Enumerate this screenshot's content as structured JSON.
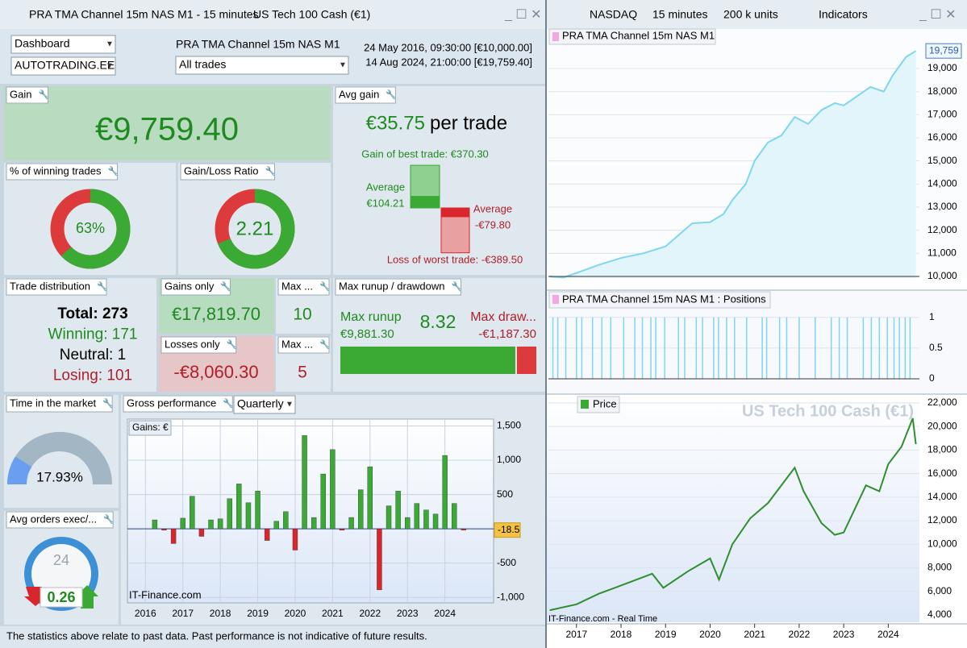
{
  "window": {
    "title": "PRA TMA Channel 15m NAS M1 - 15 minutes",
    "instrument": "US Tech 100 Cash (€1)"
  },
  "toolbar": {
    "market": "NASDAQ",
    "timeframe": "15 minutes",
    "units": "200 k units",
    "indicators": "Indicators"
  },
  "header": {
    "view": "Dashboard",
    "account": "AUTOTRADING.EE",
    "strategy": "PRA TMA Channel 15m NAS M1",
    "filter": "All trades",
    "start": "24 May 2016, 09:30:00 [€10,000.00]",
    "end": "14 Aug 2024, 21:00:00 [€19,759.40]"
  },
  "gain": {
    "label": "Gain",
    "value": "€9,759.40"
  },
  "avg_gain": {
    "label": "Avg gain",
    "value": "€35.75",
    "suffix": "per trade",
    "best": {
      "value": 370.3,
      "label": "Gain of best trade: €370.30"
    },
    "avg_win_label": "Average",
    "avg_win": {
      "value": 104.21,
      "label": "€104.21"
    },
    "avg_loss_label": "Average",
    "avg_loss": {
      "value": -79.8,
      "label": "-€79.80"
    },
    "worst": {
      "value": -389.5,
      "label": "Loss of worst trade: -€389.50"
    }
  },
  "winning": {
    "label": "% of winning trades",
    "value": 63,
    "value_label": "63%"
  },
  "ratio": {
    "label": "Gain/Loss Ratio",
    "value": 2.21
  },
  "distribution": {
    "label": "Trade distribution",
    "rows": [
      {
        "label": "Total:",
        "value": 273
      },
      {
        "label": "Winning:",
        "value": 171
      },
      {
        "label": "Neutral:",
        "value": 1
      },
      {
        "label": "Losing:",
        "value": 101
      }
    ]
  },
  "gains_only": {
    "label": "Gains only",
    "value": "€17,819.70",
    "max_label": "Max ...",
    "max": 10
  },
  "losses_only": {
    "label": "Losses only",
    "value": "-€8,060.30",
    "max_label": "Max ...",
    "max": 5
  },
  "runup": {
    "label": "Max runup / drawdown",
    "runup_label": "Max runup",
    "runup": {
      "value": 9881.3,
      "label": "€9,881.30"
    },
    "ratio": 8.32,
    "drawdown_label": "Max draw...",
    "drawdown": {
      "value": -1187.3,
      "label": "-€1,187.30"
    }
  },
  "time_in_market": {
    "label": "Time in the market",
    "value": 17.93,
    "value_label": "17.93%"
  },
  "avg_orders": {
    "label": "Avg orders exec/...",
    "value": 0.26,
    "clock": "24"
  },
  "footer": "The statistics above relate to past data. Past performance is not indicative of future results.",
  "chart_data": [
    {
      "type": "bar",
      "title": "Gross performance",
      "period": "Quarterly",
      "axis_label": "Gains: €",
      "source": "IT-Finance.com",
      "x": [
        2016.25,
        2016.5,
        2016.75,
        2017,
        2017.25,
        2017.5,
        2017.75,
        2018,
        2018.25,
        2018.5,
        2018.75,
        2019,
        2019.25,
        2019.5,
        2019.75,
        2020,
        2020.25,
        2020.5,
        2020.75,
        2021,
        2021.25,
        2021.5,
        2021.75,
        2022,
        2022.25,
        2022.5,
        2022.75,
        2023,
        2023.25,
        2023.5,
        2023.75,
        2024,
        2024.25,
        2024.5
      ],
      "values": [
        130,
        -20,
        -215,
        155,
        475,
        -110,
        130,
        145,
        440,
        655,
        380,
        550,
        -170,
        110,
        250,
        -310,
        1360,
        165,
        800,
        1155,
        -20,
        165,
        570,
        905,
        -890,
        335,
        550,
        165,
        370,
        275,
        215,
        1070,
        370,
        -18.5
      ],
      "colors": {
        "positive": "#3aaa35",
        "negative": "#d9262c"
      },
      "xlim": [
        2015.52,
        2025.3
      ],
      "xticks": [
        2016,
        2017,
        2018,
        2019,
        2020,
        2021,
        2022,
        2023,
        2024
      ],
      "ylim": [
        -1080,
        1600
      ],
      "yticks": [
        {
          "value": 1500,
          "label": "1,500"
        },
        {
          "value": 1000,
          "label": "1,000"
        },
        500,
        -500,
        {
          "value": -1000,
          "label": "-1,000"
        }
      ]
    },
    {
      "type": "area",
      "title": "PRA TMA Channel 15m NAS M1",
      "color": "#7fd6f0",
      "x": [
        2016.4,
        2016.7,
        2017,
        2017.5,
        2018,
        2018.5,
        2019,
        2019.3,
        2019.6,
        2020,
        2020.3,
        2020.5,
        2020.8,
        2021,
        2021.3,
        2021.6,
        2021.9,
        2022.2,
        2022.5,
        2022.8,
        2023,
        2023.3,
        2023.6,
        2023.9,
        2024.1,
        2024.4,
        2024.62
      ],
      "values": [
        10000,
        9950,
        10150,
        10500,
        10800,
        11000,
        11300,
        11800,
        12300,
        12350,
        12700,
        13300,
        14000,
        15000,
        15800,
        16100,
        16900,
        16600,
        17200,
        17500,
        17400,
        17800,
        18200,
        18000,
        18700,
        19500,
        19759.4
      ],
      "last_value_label": "19,759",
      "xlim": [
        2016.37,
        2024.7
      ],
      "ylim": [
        9930,
        20010
      ],
      "yticks": [
        {
          "value": 10000,
          "label": "10,000"
        },
        {
          "value": 11000,
          "label": "11,000"
        },
        {
          "value": 12000,
          "label": "12,000"
        },
        {
          "value": 13000,
          "label": "13,000"
        },
        {
          "value": 14000,
          "label": "14,000"
        },
        {
          "value": 15000,
          "label": "15,000"
        },
        {
          "value": 16000,
          "label": "16,000"
        },
        {
          "value": 17000,
          "label": "17,000"
        },
        {
          "value": 18000,
          "label": "18,000"
        },
        {
          "value": 19000,
          "label": "19,000"
        }
      ]
    },
    {
      "type": "bar",
      "title": "PRA TMA Channel 15m NAS M1 : Positions",
      "color": "#7fd6f0",
      "x": [
        2016.47,
        2016.58,
        2016.76,
        2017.0,
        2017.12,
        2017.36,
        2017.57,
        2017.77,
        2018.06,
        2018.31,
        2018.48,
        2018.67,
        2018.78,
        2018.98,
        2019.29,
        2019.43,
        2019.69,
        2019.83,
        2020.08,
        2020.19,
        2020.37,
        2020.55,
        2020.82,
        2021.17,
        2021.27,
        2021.56,
        2021.72,
        2022.0,
        2022.36,
        2022.72,
        2022.9,
        2023.08,
        2023.44,
        2023.62,
        2023.8,
        2023.98,
        2024.13,
        2024.25,
        2024.38,
        2024.49
      ],
      "values": [
        1,
        1,
        1,
        1,
        1,
        1,
        1,
        1,
        1,
        1,
        1,
        1,
        1,
        1,
        1,
        1,
        1,
        1,
        1,
        1,
        1,
        1,
        1,
        1,
        1,
        1,
        1,
        1,
        1,
        1,
        1,
        1,
        1,
        1,
        1,
        1,
        1,
        1,
        1,
        1
      ],
      "xlim": [
        2016.37,
        2024.7
      ],
      "ylim": [
        0,
        1.18
      ],
      "yticks": [
        1,
        0.5,
        0
      ]
    },
    {
      "type": "line",
      "title": "Price",
      "watermark": "US Tech 100 Cash (€1)",
      "source": "IT-Finance.com - Real Time",
      "color": "#2f8f2f",
      "x": [
        2016.4,
        2017,
        2017.5,
        2018,
        2018.7,
        2018.95,
        2019.5,
        2020,
        2020.2,
        2020.5,
        2020.9,
        2021.3,
        2021.9,
        2022.1,
        2022.5,
        2022.8,
        2023,
        2023.5,
        2023.8,
        2024,
        2024.3,
        2024.55,
        2024.62
      ],
      "values": [
        4400,
        4900,
        5800,
        6500,
        7500,
        6300,
        7700,
        8800,
        7000,
        10000,
        12200,
        13500,
        16500,
        14500,
        11800,
        10800,
        11000,
        15000,
        14500,
        16800,
        18300,
        20700,
        18500
      ],
      "xlim": [
        2016.37,
        2024.7
      ],
      "xticks": [
        2017,
        2018,
        2019,
        2020,
        2021,
        2022,
        2023,
        2024
      ],
      "ylim": [
        3520,
        22680
      ],
      "yticks": [
        {
          "value": 4000,
          "label": "4,000"
        },
        {
          "value": 6000,
          "label": "6,000"
        },
        {
          "value": 8000,
          "label": "8,000"
        },
        {
          "value": 10000,
          "label": "10,000"
        },
        {
          "value": 12000,
          "label": "12,000"
        },
        {
          "value": 14000,
          "label": "14,000"
        },
        {
          "value": 16000,
          "label": "16,000"
        },
        {
          "value": 18000,
          "label": "18,000"
        },
        {
          "value": 20000,
          "label": "20,000"
        },
        {
          "value": 22000,
          "label": "22,000"
        }
      ]
    }
  ]
}
